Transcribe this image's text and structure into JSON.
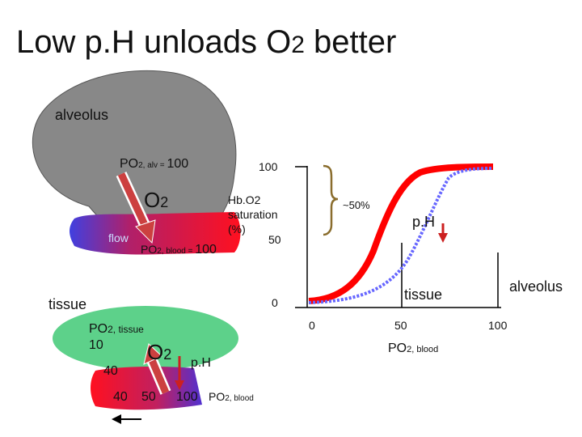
{
  "title": {
    "main": "Low p.H unloads O",
    "sub": "2",
    "rest": " better"
  },
  "alveolus": {
    "label": "alveolus",
    "po2_prefix": "PO",
    "po2_sub": "2, alv = ",
    "po2_value": "100",
    "o2_main": "O",
    "o2_sub": "2",
    "flow_label": "flow",
    "po2_blood_prefix": "PO",
    "po2_blood_sub": "2, blood = ",
    "po2_blood_value": "100"
  },
  "tissue": {
    "label": "tissue",
    "po2_prefix": "PO",
    "po2_sub": "2, tissue",
    "po2_value": "10",
    "o2_main": "O",
    "o2_sub": "2",
    "ph_label": "p.H",
    "val_40a": "40",
    "val_40b": "40",
    "val_50": "50",
    "val_100": "100",
    "po2_blood_prefix": "PO",
    "po2_blood_sub": "2, blood"
  },
  "graph": {
    "y_top": "100",
    "y_mid": "50",
    "y_zero": "0",
    "ylabel_lines": [
      "Hb.O2",
      "saturation",
      "(%)"
    ],
    "bracket_label": "~50%",
    "ph_label": "p.H",
    "x_ticks": [
      "0",
      "50",
      "100"
    ],
    "xlabel_prefix": "PO",
    "xlabel_sub": "2, blood",
    "tissue_marker": "tissue",
    "alveolus_marker": "alveolus"
  },
  "colors": {
    "alveolus_gray": "#888888",
    "tissue_green": "#5dd18a",
    "curve_red": "#ff0000",
    "curve_blue": "#6666ff",
    "bracket_brown": "#8a6d2d",
    "arrow_red": "#cc2020",
    "blood_blue": "#4040e0",
    "blood_red": "#ff1020"
  }
}
